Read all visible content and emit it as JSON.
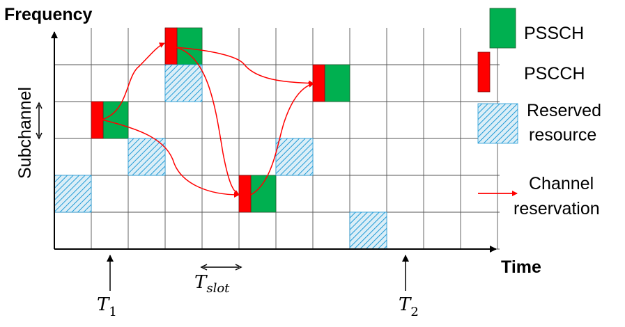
{
  "axes": {
    "y_title": "Frequency",
    "x_title": "Time",
    "y_label": "Subchannel"
  },
  "markers": {
    "t1": {
      "base": "T",
      "sub": "1"
    },
    "t2": {
      "base": "T",
      "sub": "2"
    },
    "slot": {
      "base": "T",
      "sub": "slot"
    }
  },
  "legend": {
    "pssch": "PSSCH",
    "pscch": "PSCCH",
    "reserved_line1": "Reserved",
    "reserved_line2": "resource",
    "reservation_line1": "Channel",
    "reservation_line2": "reservation"
  },
  "colors": {
    "pssch": "#00b050",
    "pscch": "#ff0000",
    "reserved_fill": "#dbeef7",
    "reserved_hatch": "#1f9ad6",
    "arrow": "#ff0000",
    "grid": "#555555"
  },
  "grid": {
    "columns": 12,
    "rows": 6
  },
  "blocks": [
    {
      "type": "transmission",
      "col": 1,
      "row": 2
    },
    {
      "type": "transmission",
      "col": 3,
      "row": 0
    },
    {
      "type": "transmission",
      "col": 5,
      "row": 4
    },
    {
      "type": "transmission",
      "col": 7,
      "row": 1
    },
    {
      "type": "reserved",
      "col": 3,
      "row": 1
    },
    {
      "type": "reserved",
      "col": 2,
      "row": 3
    },
    {
      "type": "reserved",
      "col": 0,
      "row": 4
    },
    {
      "type": "reserved",
      "col": 6,
      "row": 3
    },
    {
      "type": "reserved",
      "col": 8,
      "row": 5
    }
  ],
  "reservations": [
    {
      "from": "block-1-2",
      "to": "block-3-0"
    },
    {
      "from": "block-1-2",
      "to": "block-5-4"
    },
    {
      "from": "block-3-0",
      "to": "block-5-4"
    },
    {
      "from": "block-3-0",
      "to": "block-7-1"
    },
    {
      "from": "block-5-4",
      "to": "block-7-1"
    }
  ]
}
